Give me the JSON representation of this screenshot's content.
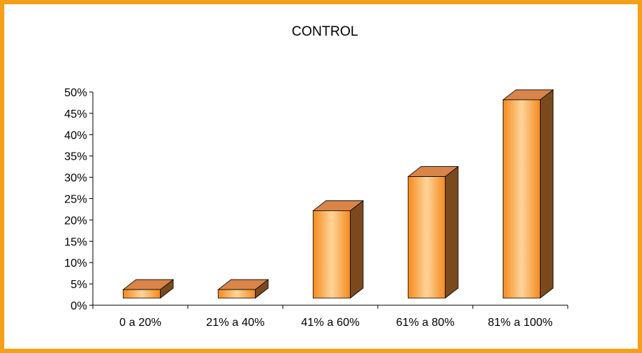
{
  "chart_data": {
    "type": "bar",
    "style": "3d-column",
    "title": "CONTROL",
    "xlabel": "",
    "ylabel": "",
    "categories": [
      "0 a 20%",
      "21% a 40%",
      "41% a 60%",
      "61% a 80%",
      "81% a 100%"
    ],
    "values": [
      2.5,
      2.5,
      21,
      29,
      47
    ],
    "ylim": [
      0,
      50
    ],
    "y_ticks": [
      "0%",
      "5%",
      "10%",
      "15%",
      "20%",
      "25%",
      "30%",
      "35%",
      "40%",
      "45%",
      "50%"
    ],
    "grid": false,
    "legend": "none",
    "colors": {
      "frame": "#f5a01a",
      "bar_front_edge": "#f48a1d",
      "bar_front_light": "#ffd49a",
      "bar_top": "#d9854a",
      "bar_side": "#7a4a1e",
      "axis": "#000000"
    }
  }
}
